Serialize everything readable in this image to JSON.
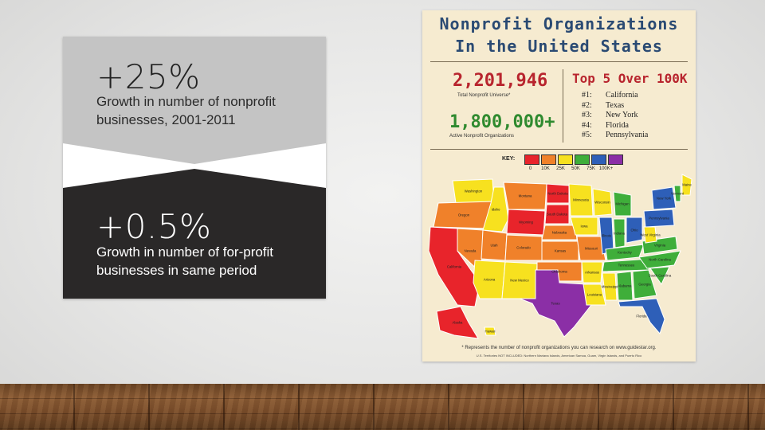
{
  "left_card": {
    "top_stat": "+25%",
    "top_caption_line1": "Growth in number of nonprofit",
    "top_caption_line2": "businesses, 2001-2011",
    "bottom_stat": "+0.5%",
    "bottom_caption_line1": "Growth in number of for-profit",
    "bottom_caption_line2": "businesses in same period",
    "colors": {
      "top_bg": "#c4c4c4",
      "middle_bg": "#ffffff",
      "bottom_bg": "#2a2828"
    }
  },
  "poster": {
    "title_line1": "Nonprofit Organizations",
    "title_line2": "In the United States",
    "total_number": "2,201,946",
    "total_label": "Total Nonprofit Universe*",
    "active_number": "1,800,000+",
    "active_label": "Active Nonprofit Organizations",
    "top5_title": "Top 5 Over 100K",
    "top5": [
      {
        "rank": "#1:",
        "state": "California"
      },
      {
        "rank": "#2:",
        "state": "Texas"
      },
      {
        "rank": "#3:",
        "state": "New York"
      },
      {
        "rank": "#4:",
        "state": "Florida"
      },
      {
        "rank": "#5:",
        "state": "Pennsylvania"
      }
    ],
    "key_label": "KEY:",
    "key_colors": [
      "#e8242b",
      "#f0812a",
      "#f7e11f",
      "#3fae3a",
      "#2e5fb8",
      "#8b2fa6"
    ],
    "key_ticks": [
      "0",
      "10K",
      "25K",
      "50K",
      "75K",
      "100K+"
    ],
    "footnote": "* Represents the number of nonprofit organizations you can research on www.guidestar.org.",
    "footnote_2": "U.S. Territories NOT INCLUDED: Northern Mariana Islands, American Samoa, Guam, Virgin Islands, and Puerto Rico",
    "map_labels": [
      "Washington",
      "Oregon",
      "California",
      "Nevada",
      "Idaho",
      "Montana",
      "Wyoming",
      "Utah",
      "Arizona",
      "Colorado",
      "New Mexico",
      "North Dakota",
      "South Dakota",
      "Nebraska",
      "Kansas",
      "Oklahoma",
      "Texas",
      "Minnesota",
      "Iowa",
      "Missouri",
      "Arkansas",
      "Louisiana",
      "Wisconsin",
      "Illinois",
      "Michigan",
      "Indiana",
      "Ohio",
      "Kentucky",
      "Tennessee",
      "Mississippi",
      "Alabama",
      "Georgia",
      "Florida",
      "South Carolina",
      "North Carolina",
      "Virginia",
      "West Virginia",
      "Pennsylvania",
      "New York",
      "Vermont",
      "Maine",
      "Alaska",
      "Hawaii"
    ]
  }
}
